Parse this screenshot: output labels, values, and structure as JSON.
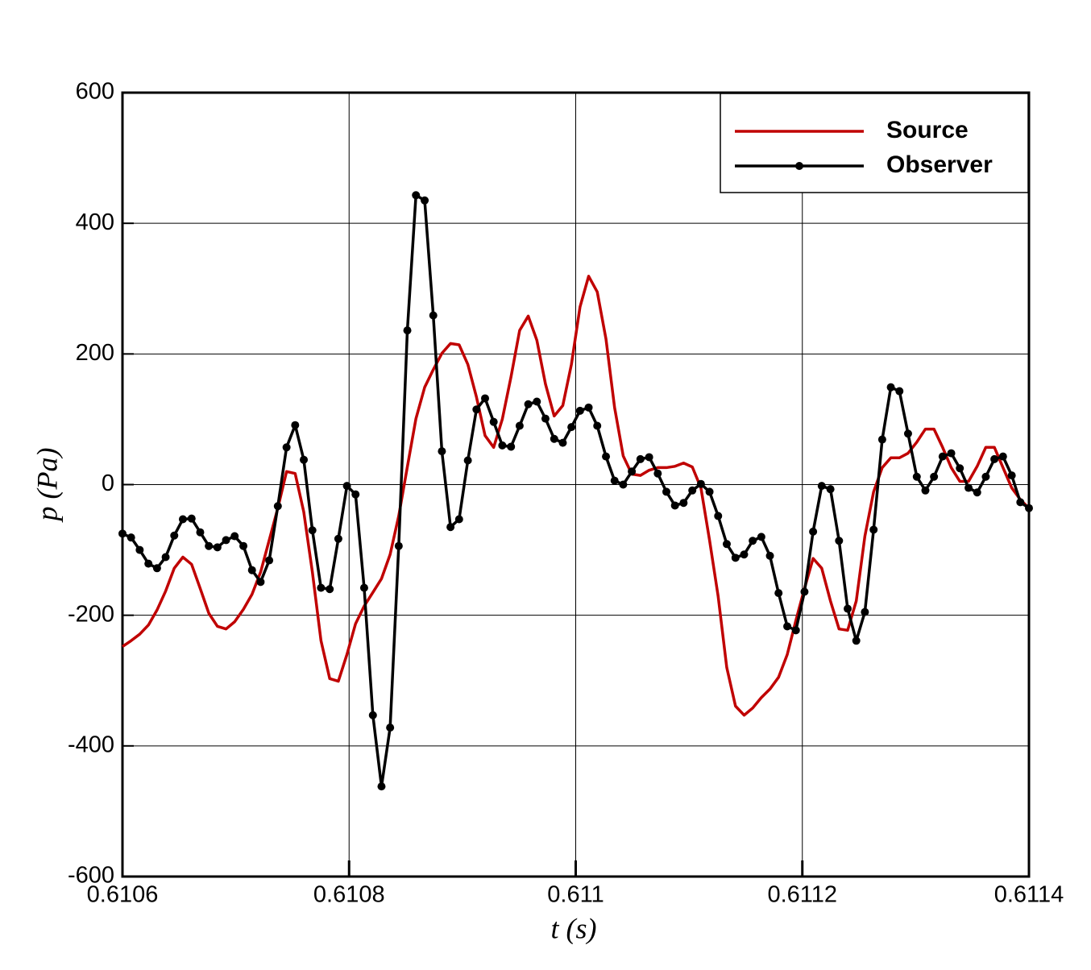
{
  "chart_data": {
    "type": "line",
    "xlabel": "t (s)",
    "ylabel": "p (Pa)",
    "xlim": [
      0.6106,
      0.6114
    ],
    "xticks": [
      0.6106,
      0.6108,
      0.611,
      0.6112,
      0.6114
    ],
    "ylim": [
      -600,
      600
    ],
    "yticks": [
      -600,
      -400,
      -200,
      0,
      200,
      400,
      600
    ],
    "grid": true,
    "legend": "upper right",
    "x": [
      0.6106,
      0.6106076,
      0.6106152,
      0.6106229,
      0.6106305,
      0.6106381,
      0.6106457,
      0.6106533,
      0.610661,
      0.6106686,
      0.6106762,
      0.6106838,
      0.6106914,
      0.610699,
      0.6107067,
      0.6107143,
      0.6107219,
      0.6107295,
      0.6107371,
      0.6107448,
      0.6107524,
      0.61076,
      0.6107676,
      0.6107752,
      0.6107829,
      0.6107905,
      0.6107981,
      0.6108057,
      0.6108133,
      0.610821,
      0.6108286,
      0.6108362,
      0.6108438,
      0.6108514,
      0.610859,
      0.6108667,
      0.6108743,
      0.6108819,
      0.6108895,
      0.6108971,
      0.6109048,
      0.6109124,
      0.61092,
      0.6109276,
      0.6109352,
      0.6109429,
      0.6109505,
      0.6109581,
      0.6109657,
      0.6109733,
      0.610981,
      0.6109886,
      0.6109962,
      0.6110038,
      0.6110114,
      0.611019,
      0.6110267,
      0.6110343,
      0.6110419,
      0.6110495,
      0.6110571,
      0.6110648,
      0.6110724,
      0.61108,
      0.6110876,
      0.6110952,
      0.6111029,
      0.6111105,
      0.6111181,
      0.6111257,
      0.6111333,
      0.611141,
      0.6111486,
      0.6111562,
      0.6111638,
      0.6111714,
      0.611179,
      0.6111867,
      0.6111943,
      0.6112019,
      0.6112095,
      0.6112171,
      0.6112248,
      0.6112324,
      0.61124,
      0.6112476,
      0.6112552,
      0.6112629,
      0.6112705,
      0.6112781,
      0.6112857,
      0.6112933,
      0.611301,
      0.6113086,
      0.6113162,
      0.6113238,
      0.6113314,
      0.611339,
      0.6113467,
      0.6113543,
      0.6113619,
      0.6113695,
      0.6113771,
      0.6113848,
      0.6113924,
      0.6114
    ],
    "series": [
      {
        "name": "Source",
        "color": "#c00000",
        "markers": false,
        "values": [
          -248,
          -239,
          -229,
          -215,
          -192,
          -163,
          -128,
          -111,
          -122,
          -159,
          -197,
          -217,
          -221,
          -210,
          -191,
          -168,
          -134,
          -85,
          -36,
          20,
          17,
          -42,
          -134,
          -239,
          -297,
          -301,
          -260,
          -213,
          -186,
          -165,
          -144,
          -107,
          -48,
          27,
          101,
          149,
          176,
          201,
          216,
          214,
          184,
          134,
          75,
          57,
          100,
          165,
          236,
          258,
          221,
          154,
          105,
          121,
          184,
          272,
          319,
          295,
          223,
          118,
          44,
          16,
          14,
          22,
          26,
          26,
          28,
          33,
          27,
          -5,
          -85,
          -171,
          -280,
          -339,
          -353,
          -342,
          -326,
          -313,
          -295,
          -260,
          -208,
          -159,
          -113,
          -128,
          -178,
          -221,
          -223,
          -178,
          -79,
          -11,
          26,
          41,
          41,
          48,
          65,
          85,
          85,
          57,
          26,
          5,
          5,
          28,
          57,
          57,
          26,
          -5,
          -23,
          -36
        ]
      },
      {
        "name": "Observer",
        "color": "#000000",
        "markers": true,
        "values": [
          -75,
          -81,
          -100,
          -121,
          -128,
          -111,
          -78,
          -53,
          -52,
          -73,
          -94,
          -96,
          -85,
          -79,
          -94,
          -131,
          -149,
          -116,
          -33,
          57,
          91,
          38,
          -70,
          -158,
          -160,
          -83,
          -2,
          -15,
          -158,
          -353,
          -462,
          -372,
          -94,
          236,
          443,
          435,
          259,
          51,
          -65,
          -53,
          37,
          115,
          132,
          96,
          60,
          58,
          90,
          123,
          127,
          101,
          70,
          64,
          88,
          113,
          118,
          90,
          43,
          6,
          0,
          20,
          39,
          42,
          17,
          -11,
          -32,
          -28,
          -9,
          1,
          -11,
          -48,
          -91,
          -112,
          -107,
          -86,
          -80,
          -109,
          -166,
          -217,
          -223,
          -164,
          -72,
          -2,
          -7,
          -86,
          -190,
          -239,
          -195,
          -69,
          69,
          149,
          143,
          78,
          12,
          -9,
          12,
          43,
          48,
          25,
          -5,
          -12,
          12,
          39,
          43,
          14,
          -27,
          -36
        ]
      }
    ]
  }
}
